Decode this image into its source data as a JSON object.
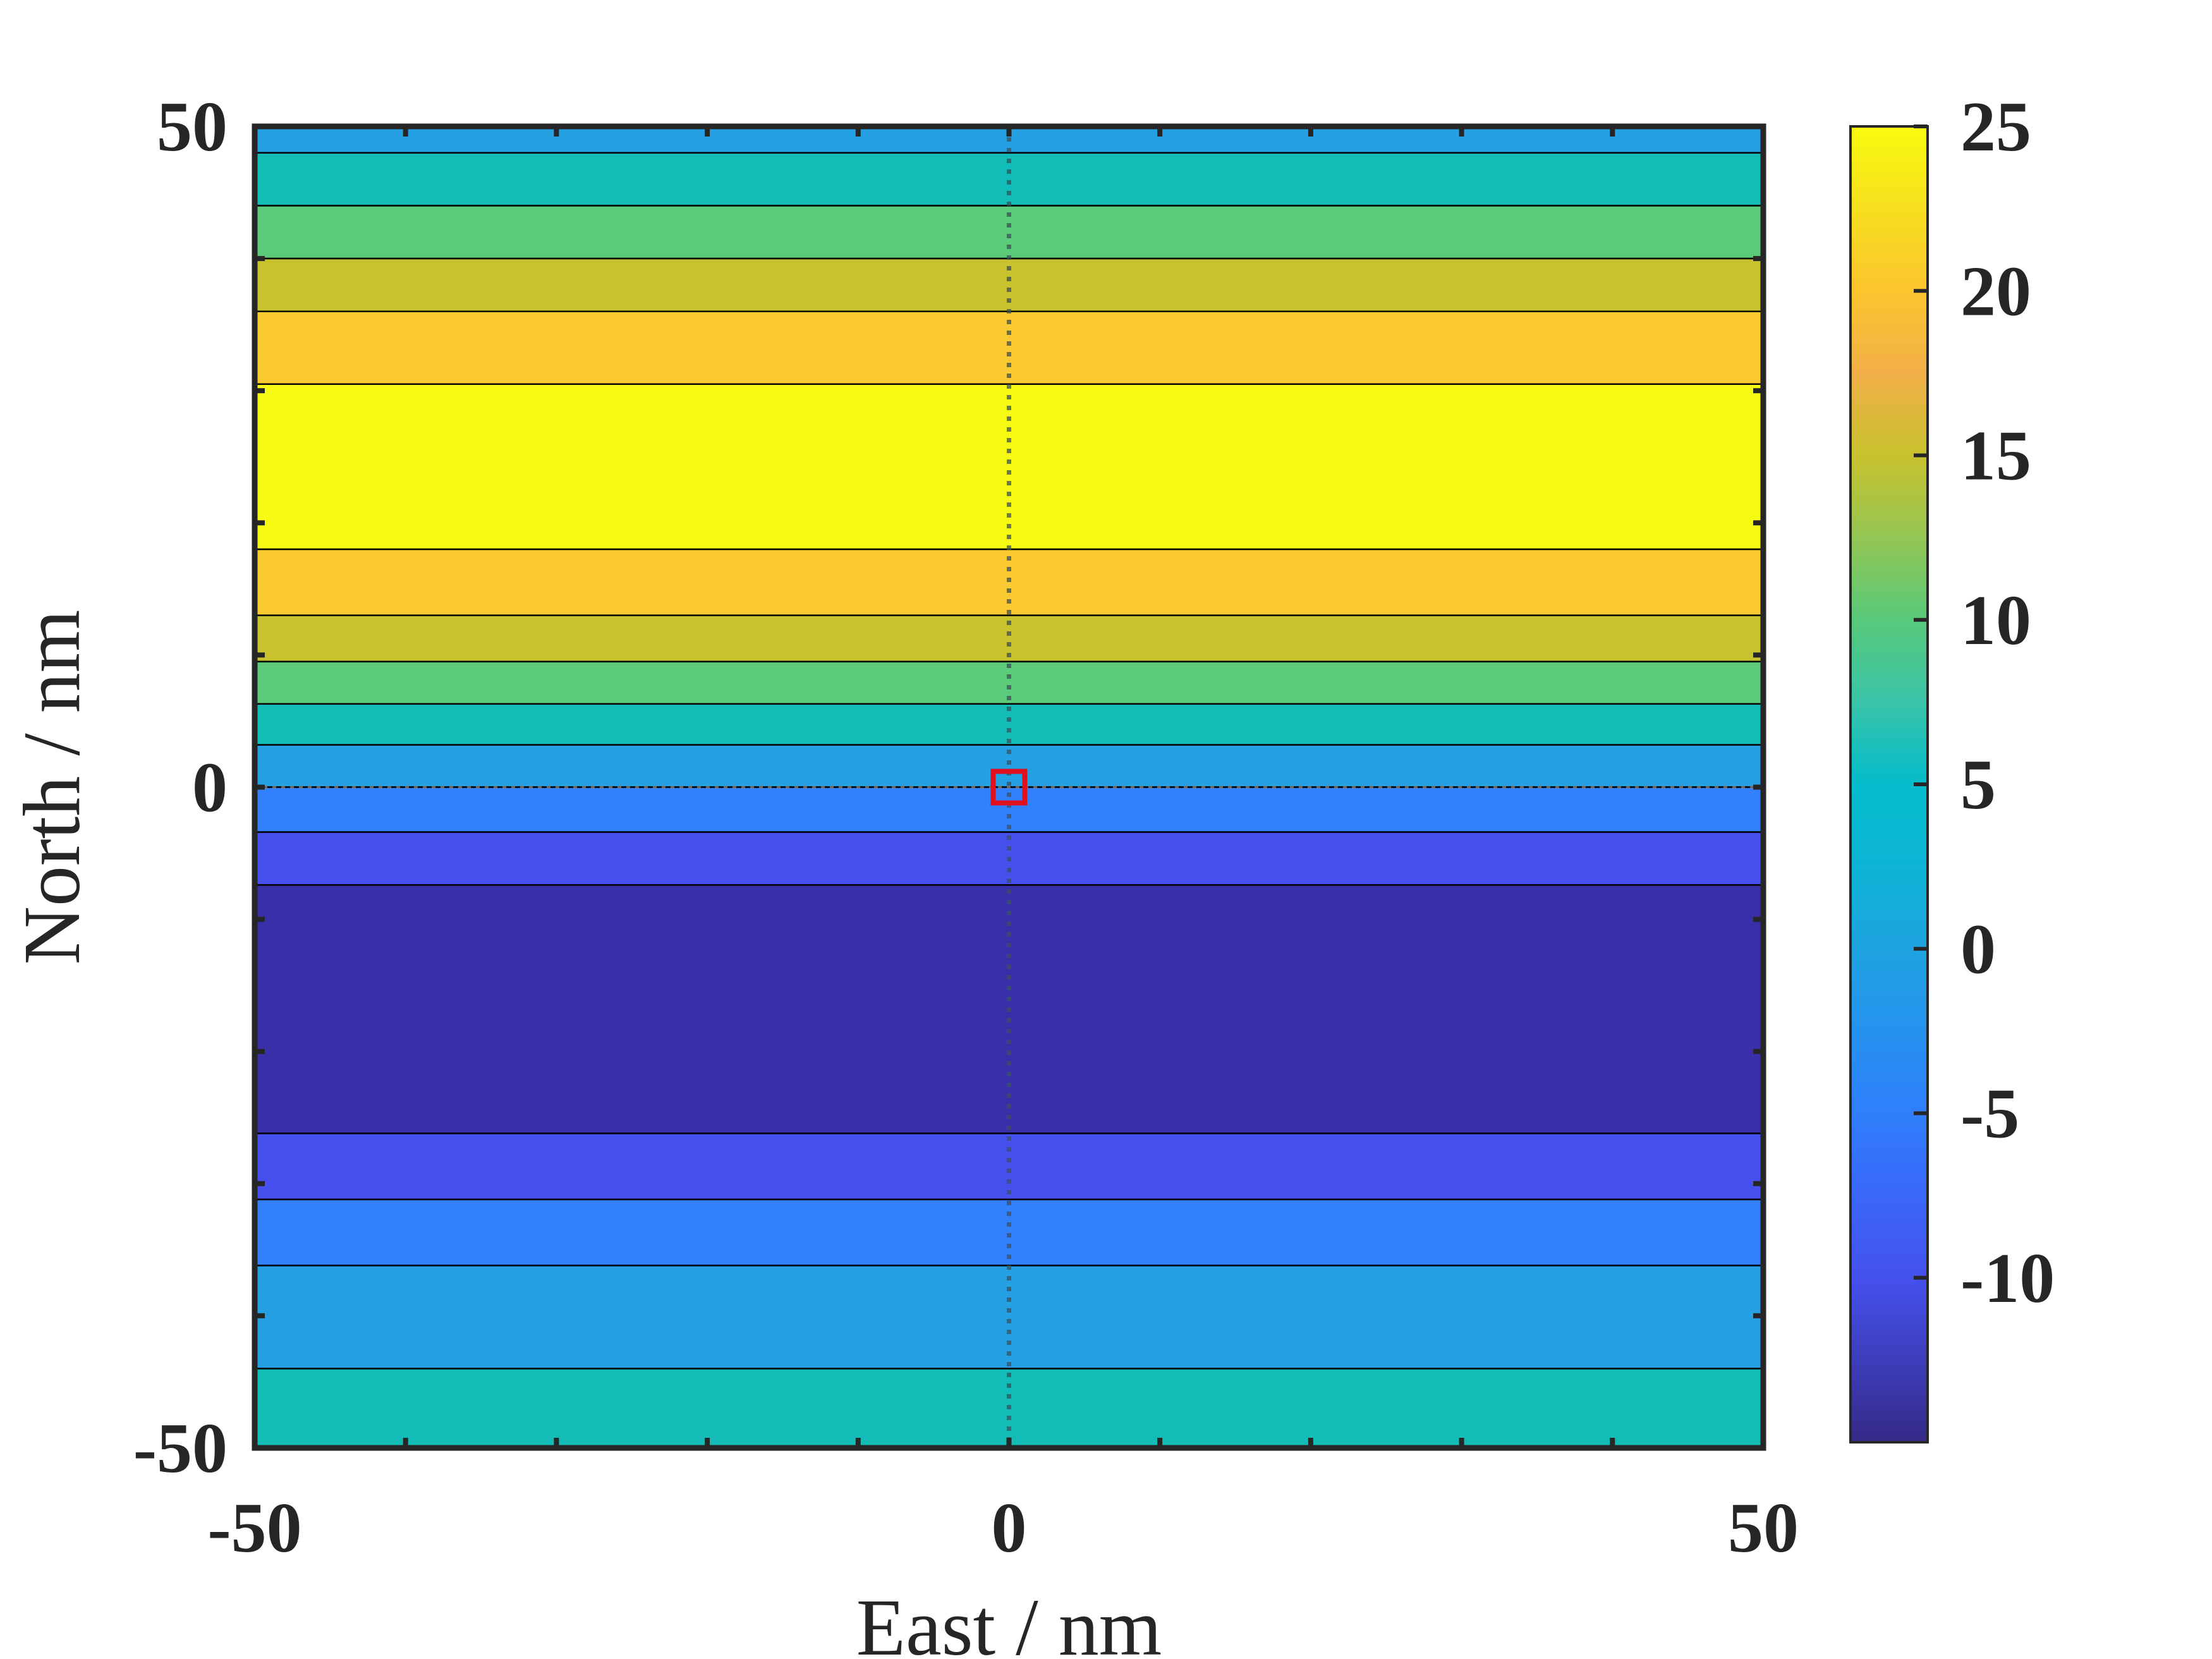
{
  "chart_data": {
    "type": "heatmap",
    "title": "",
    "xlabel": "East / nm",
    "ylabel": "North / nm",
    "xlim": [
      -50,
      50
    ],
    "ylim": [
      -50,
      50
    ],
    "xticks": [
      -50,
      0,
      50
    ],
    "xtick_labels": [
      "-50",
      "0",
      "50"
    ],
    "yticks": [
      -50,
      0,
      50
    ],
    "ytick_labels": [
      "-50",
      "0",
      "50"
    ],
    "grid": false,
    "bands": [
      {
        "y0": 48,
        "y1": 50,
        "value": 0
      },
      {
        "y0": 44,
        "y1": 48,
        "value": 5
      },
      {
        "y0": 40,
        "y1": 44,
        "value": 10
      },
      {
        "y0": 36,
        "y1": 40,
        "value": 15
      },
      {
        "y0": 30.5,
        "y1": 36,
        "value": 20
      },
      {
        "y0": 18,
        "y1": 30.5,
        "value": 25
      },
      {
        "y0": 13,
        "y1": 18,
        "value": 20
      },
      {
        "y0": 9.5,
        "y1": 13,
        "value": 15
      },
      {
        "y0": 6.3,
        "y1": 9.5,
        "value": 10
      },
      {
        "y0": 3.2,
        "y1": 6.3,
        "value": 5
      },
      {
        "y0": 0,
        "y1": 3.2,
        "value": 0
      },
      {
        "y0": -3.4,
        "y1": 0,
        "value": -5
      },
      {
        "y0": -7.4,
        "y1": -3.4,
        "value": -10
      },
      {
        "y0": -26.2,
        "y1": -7.4,
        "value": -15
      },
      {
        "y0": -31.2,
        "y1": -26.2,
        "value": -10
      },
      {
        "y0": -36.2,
        "y1": -31.2,
        "value": -5
      },
      {
        "y0": -44,
        "y1": -36.2,
        "value": 0
      },
      {
        "y0": -50,
        "y1": -44,
        "value": 5
      }
    ],
    "value_colors": {
      "-15": "#392fa8",
      "-10": "#4650ee",
      "-5": "#3380fd",
      "0": "#24a0e3",
      "5": "#13bcb7",
      "10": "#5ccb79",
      "15": "#c8c22e",
      "20": "#fbca32",
      "25": "#f7fb14"
    },
    "reference_lines": {
      "x": 0,
      "y": 0,
      "style": "dotted"
    },
    "marker": {
      "x": 0,
      "y": 0,
      "shape": "square",
      "color": "#e0101e"
    },
    "colorbar": {
      "range": [
        -15,
        25
      ],
      "ticks": [
        -10,
        -5,
        0,
        5,
        10,
        15,
        20,
        25
      ],
      "tick_labels": [
        "-10",
        "-5",
        "0",
        "5",
        "10",
        "15",
        "20",
        "25"
      ],
      "colormap": [
        [
          -15,
          "#352a87"
        ],
        [
          -10,
          "#4551ee"
        ],
        [
          -7.5,
          "#3a67fa"
        ],
        [
          -5,
          "#2f7ffb"
        ],
        [
          -2.5,
          "#2592ef"
        ],
        [
          0,
          "#1fa3e0"
        ],
        [
          2.5,
          "#0db4d5"
        ],
        [
          5,
          "#03bccb"
        ],
        [
          7.5,
          "#3ac4a8"
        ],
        [
          10,
          "#57c97a"
        ],
        [
          12.5,
          "#94c653"
        ],
        [
          15,
          "#c8c22e"
        ],
        [
          17.5,
          "#f2af48"
        ],
        [
          20,
          "#fbc52e"
        ],
        [
          22.5,
          "#f6df1f"
        ],
        [
          25,
          "#f9fb0e"
        ]
      ]
    }
  }
}
